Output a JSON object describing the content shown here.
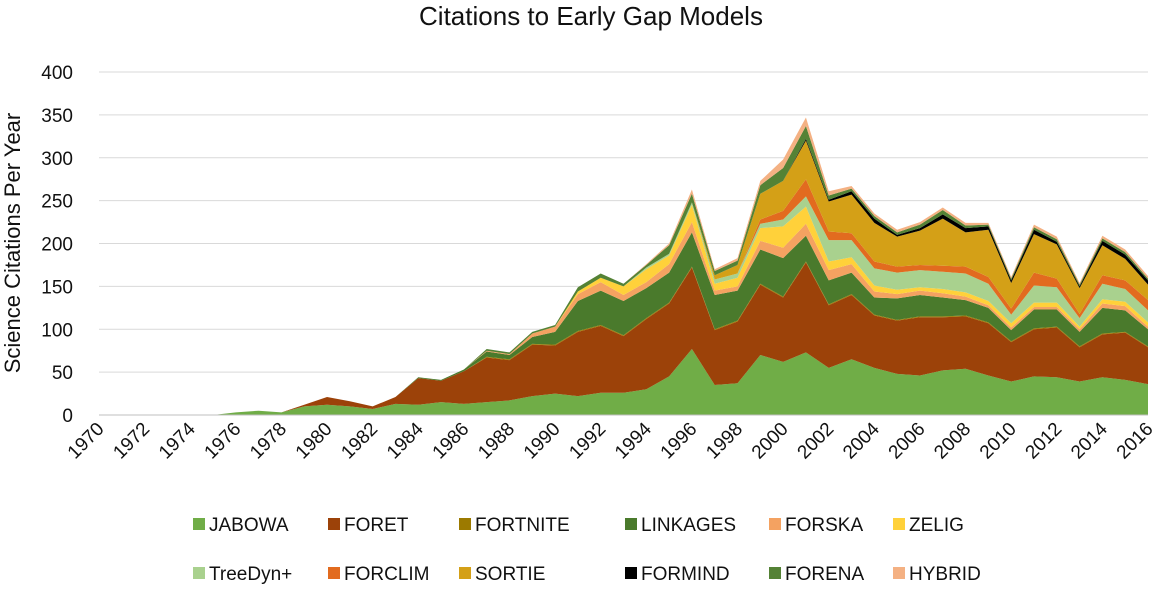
{
  "chart_data": {
    "type": "area",
    "stacked": true,
    "title": "Citations to Early Gap Models",
    "xlabel": "",
    "ylabel": "Science Citations Per Year",
    "ylim": [
      0,
      400
    ],
    "yticks": [
      "0",
      "50",
      "100",
      "150",
      "200",
      "250",
      "300",
      "350",
      "400"
    ],
    "xticks": [
      "1970",
      "1972",
      "1974",
      "1976",
      "1978",
      "1980",
      "1982",
      "1984",
      "1986",
      "1988",
      "1990",
      "1992",
      "1994",
      "1996",
      "1998",
      "2000",
      "2002",
      "2004",
      "2006",
      "2008",
      "2010",
      "2012",
      "2014",
      "2016"
    ],
    "grid": true,
    "legend_position": "bottom",
    "x": [
      1970,
      1971,
      1972,
      1973,
      1974,
      1975,
      1976,
      1977,
      1978,
      1979,
      1980,
      1981,
      1982,
      1983,
      1984,
      1985,
      1986,
      1987,
      1988,
      1989,
      1990,
      1991,
      1992,
      1993,
      1994,
      1995,
      1996,
      1997,
      1998,
      1999,
      2000,
      2001,
      2002,
      2003,
      2004,
      2005,
      2006,
      2007,
      2008,
      2009,
      2010,
      2011,
      2012,
      2013,
      2014,
      2015,
      2016
    ],
    "series": [
      {
        "name": "JABOWA",
        "color": "#70ad47",
        "values": [
          0,
          0,
          0,
          0,
          0,
          0,
          3,
          5,
          3,
          10,
          12,
          10,
          7,
          13,
          12,
          15,
          13,
          15,
          17,
          22,
          25,
          22,
          26,
          26,
          30,
          45,
          77,
          35,
          37,
          70,
          62,
          73,
          55,
          65,
          55,
          48,
          46,
          52,
          54,
          46,
          39,
          45,
          44,
          39,
          44,
          41,
          36
        ]
      },
      {
        "name": "FORET",
        "color": "#9c4209",
        "values": [
          0,
          0,
          0,
          0,
          0,
          0,
          0,
          0,
          0,
          2,
          9,
          6,
          3,
          8,
          31,
          25,
          38,
          52,
          47,
          60,
          56,
          75,
          78,
          66,
          82,
          85,
          95,
          64,
          72,
          82,
          75,
          105,
          73,
          75,
          61,
          62,
          68,
          62,
          61,
          61,
          46,
          55,
          58,
          40,
          50,
          55,
          43
        ]
      },
      {
        "name": "FORTNITE",
        "color": "#9c7a00",
        "values": [
          0,
          0,
          0,
          0,
          0,
          0,
          0,
          0,
          0,
          0,
          0,
          0,
          0,
          0,
          0,
          0,
          0,
          1,
          1,
          1,
          1,
          1,
          1,
          1,
          1,
          1,
          1,
          1,
          1,
          1,
          1,
          1,
          1,
          1,
          1,
          1,
          1,
          1,
          1,
          1,
          1,
          1,
          1,
          1,
          1,
          1,
          1
        ]
      },
      {
        "name": "LINKAGES",
        "color": "#4a7a2c",
        "values": [
          0,
          0,
          0,
          0,
          0,
          0,
          0,
          0,
          0,
          0,
          0,
          0,
          0,
          0,
          1,
          1,
          2,
          6,
          5,
          8,
          15,
          35,
          40,
          40,
          35,
          35,
          40,
          40,
          35,
          40,
          45,
          30,
          28,
          25,
          20,
          25,
          25,
          22,
          18,
          17,
          13,
          22,
          20,
          17,
          30,
          25,
          20
        ]
      },
      {
        "name": "FORSKA",
        "color": "#f4a261",
        "values": [
          0,
          0,
          0,
          0,
          0,
          0,
          0,
          0,
          0,
          0,
          0,
          0,
          0,
          0,
          0,
          0,
          0,
          1,
          1,
          4,
          6,
          8,
          10,
          7,
          7,
          10,
          12,
          5,
          5,
          10,
          12,
          14,
          12,
          10,
          7,
          5,
          5,
          5,
          4,
          3,
          3,
          3,
          3,
          3,
          5,
          5,
          3
        ]
      },
      {
        "name": "ZELIG",
        "color": "#ffd13a",
        "values": [
          0,
          0,
          0,
          0,
          0,
          0,
          0,
          0,
          0,
          0,
          0,
          0,
          0,
          0,
          0,
          0,
          0,
          0,
          0,
          0,
          0,
          3,
          5,
          10,
          15,
          10,
          20,
          8,
          10,
          15,
          25,
          20,
          10,
          8,
          7,
          5,
          4,
          5,
          5,
          5,
          5,
          5,
          5,
          3,
          5,
          5,
          5
        ]
      },
      {
        "name": "TreeDyn+",
        "color": "#a9d18e",
        "values": [
          0,
          0,
          0,
          0,
          0,
          0,
          0,
          0,
          0,
          0,
          0,
          0,
          0,
          0,
          0,
          0,
          0,
          0,
          0,
          0,
          0,
          0,
          0,
          0,
          2,
          2,
          3,
          5,
          5,
          5,
          8,
          12,
          25,
          20,
          20,
          20,
          20,
          20,
          22,
          20,
          10,
          20,
          18,
          10,
          18,
          15,
          14
        ]
      },
      {
        "name": "FORCLIM",
        "color": "#e26b1f",
        "values": [
          0,
          0,
          0,
          0,
          0,
          0,
          0,
          0,
          0,
          0,
          0,
          0,
          0,
          0,
          0,
          0,
          0,
          0,
          0,
          0,
          0,
          0,
          0,
          0,
          0,
          0,
          0,
          0,
          0,
          5,
          10,
          20,
          10,
          8,
          8,
          7,
          6,
          7,
          8,
          8,
          7,
          15,
          10,
          5,
          10,
          10,
          12
        ]
      },
      {
        "name": "SORTIE",
        "color": "#d4a017",
        "values": [
          0,
          0,
          0,
          0,
          0,
          0,
          0,
          0,
          0,
          0,
          0,
          0,
          0,
          0,
          0,
          0,
          0,
          0,
          0,
          0,
          0,
          0,
          0,
          0,
          0,
          0,
          0,
          5,
          10,
          30,
          35,
          45,
          35,
          45,
          45,
          35,
          40,
          55,
          40,
          55,
          30,
          45,
          40,
          30,
          35,
          25,
          18
        ]
      },
      {
        "name": "FORMIND",
        "color": "#000000",
        "values": [
          0,
          0,
          0,
          0,
          0,
          0,
          0,
          0,
          0,
          0,
          0,
          0,
          0,
          0,
          0,
          0,
          0,
          0,
          0,
          0,
          0,
          0,
          0,
          0,
          0,
          0,
          0,
          0,
          0,
          0,
          0,
          2,
          2,
          4,
          5,
          2,
          3,
          5,
          5,
          4,
          3,
          5,
          3,
          2,
          5,
          5,
          5
        ]
      },
      {
        "name": "FORENA",
        "color": "#548235",
        "values": [
          0,
          0,
          0,
          0,
          0,
          0,
          0,
          0,
          0,
          0,
          0,
          0,
          0,
          0,
          0,
          0,
          0,
          2,
          2,
          2,
          2,
          5,
          5,
          3,
          3,
          10,
          10,
          5,
          5,
          10,
          15,
          15,
          5,
          3,
          3,
          3,
          4,
          5,
          3,
          2,
          2,
          3,
          3,
          2,
          3,
          3,
          2
        ]
      },
      {
        "name": "HYBRID",
        "color": "#f4b183",
        "values": [
          0,
          0,
          0,
          0,
          0,
          0,
          0,
          0,
          0,
          0,
          0,
          0,
          0,
          0,
          0,
          0,
          0,
          0,
          0,
          0,
          0,
          0,
          0,
          0,
          1,
          2,
          5,
          2,
          3,
          5,
          10,
          10,
          5,
          3,
          3,
          3,
          3,
          3,
          3,
          2,
          2,
          3,
          3,
          2,
          3,
          3,
          3
        ]
      }
    ]
  }
}
